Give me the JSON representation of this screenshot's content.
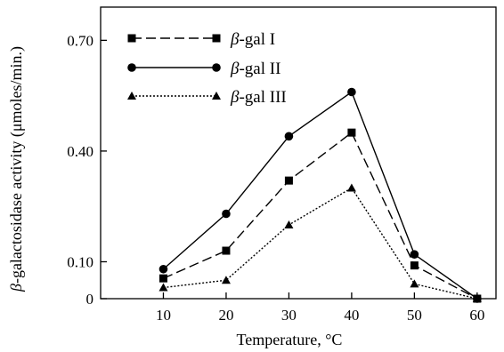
{
  "chart_data": {
    "type": "line",
    "title": "",
    "xlabel": "Temperature, °C",
    "ylabel": "β-galactosidase activity (μmoles/min.)",
    "x": [
      10,
      20,
      30,
      40,
      50,
      60
    ],
    "x_ticks": [
      "10",
      "20",
      "30",
      "40",
      "50",
      "60"
    ],
    "y_ticks": [
      {
        "value": 0,
        "label": "0"
      },
      {
        "value": 0.1,
        "label": "0.10"
      },
      {
        "value": 0.4,
        "label": "0.40"
      },
      {
        "value": 0.7,
        "label": "0.70"
      }
    ],
    "xlim": [
      0,
      63
    ],
    "ylim": [
      0,
      0.79
    ],
    "grid": false,
    "legend_position": "top-left",
    "series": [
      {
        "prefix": "β",
        "name": "-gal I",
        "marker": "square",
        "dash": "dashed",
        "values": [
          0.055,
          0.13,
          0.32,
          0.45,
          0.09,
          0.0
        ]
      },
      {
        "prefix": "β",
        "name": "-gal II",
        "marker": "circle",
        "dash": "solid",
        "values": [
          0.08,
          0.23,
          0.44,
          0.56,
          0.12,
          0.0
        ]
      },
      {
        "prefix": "β",
        "name": "-gal III",
        "marker": "triangle",
        "dash": "dotted",
        "values": [
          0.03,
          0.05,
          0.2,
          0.3,
          0.04,
          0.0
        ]
      }
    ]
  }
}
